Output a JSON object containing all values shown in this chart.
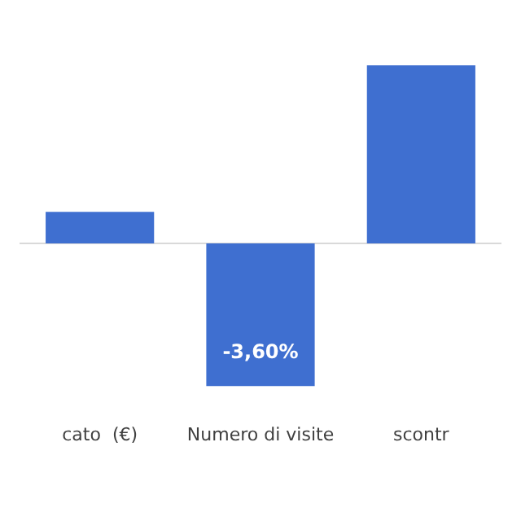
{
  "chart_data": {
    "type": "bar",
    "tick_labels": "x",
    "categories": [
      "cato  (€)",
      "Numero di visite",
      "scontr"
    ],
    "values": [
      0.8,
      -3.6,
      4.5
    ],
    "value_labels": [
      null,
      "-3,60%",
      null
    ],
    "color": "#3f6fd0",
    "grid": false,
    "legend": false
  }
}
